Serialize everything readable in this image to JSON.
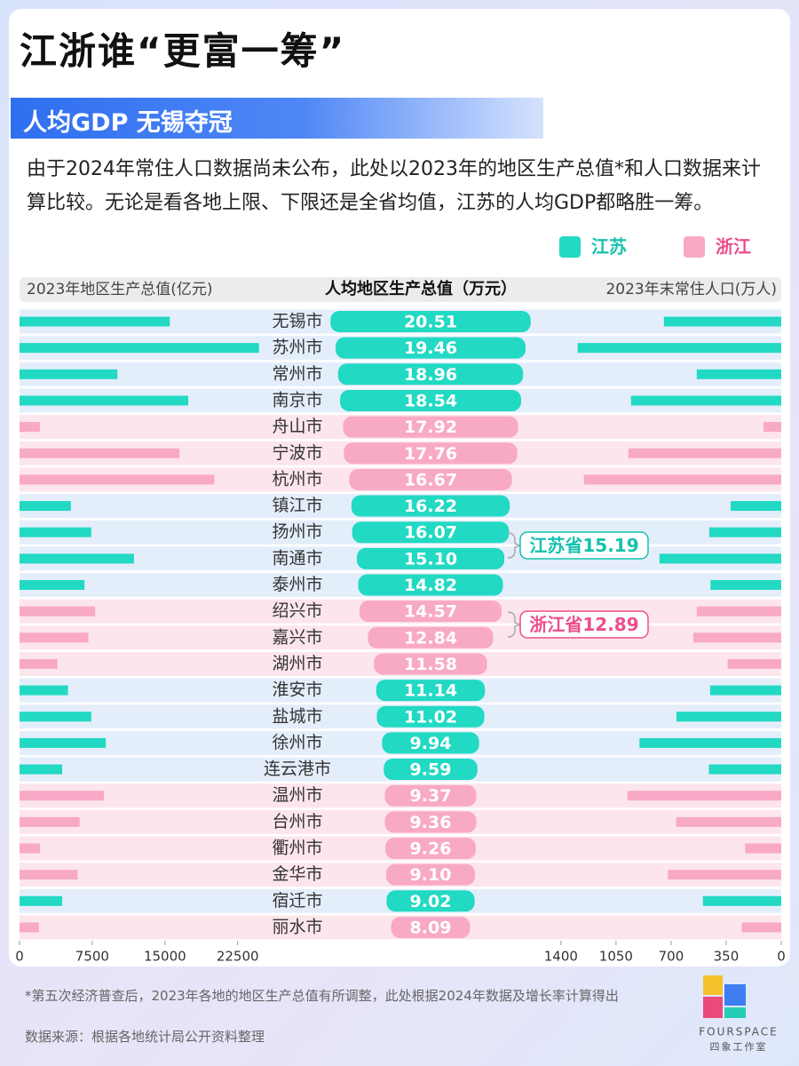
{
  "title": "江浙谁“更富一筹”",
  "subtitle": "人均GDP 无锡夺冠",
  "description": "由于2024年常住人口数据尚未公布，此处以2023年的地区生产总值*和人口数据来计算比较。无论是看各地上限、下限还是全省均值，江苏的人均GDP都略胜一筹。",
  "chart_data": {
    "type": "diverging-bar",
    "legend": [
      {
        "name": "江苏",
        "color": "#22d9c3",
        "row_color": "#e4eefb"
      },
      {
        "name": "浙江",
        "color": "#f8a9c6",
        "row_color": "#fde5ec"
      }
    ],
    "categories": [
      "无锡市",
      "苏州市",
      "常州市",
      "南京市",
      "舟山市",
      "宁波市",
      "杭州市",
      "镇江市",
      "扬州市",
      "南通市",
      "泰州市",
      "绍兴市",
      "嘉兴市",
      "湖州市",
      "淮安市",
      "盐城市",
      "徐州市",
      "连云港市",
      "温州市",
      "台州市",
      "衢州市",
      "金华市",
      "宿迁市",
      "丽水市"
    ],
    "groups": [
      "江苏",
      "江苏",
      "江苏",
      "江苏",
      "浙江",
      "浙江",
      "浙江",
      "江苏",
      "江苏",
      "江苏",
      "江苏",
      "浙江",
      "浙江",
      "浙江",
      "江苏",
      "江苏",
      "江苏",
      "江苏",
      "浙江",
      "浙江",
      "浙江",
      "浙江",
      "江苏",
      "浙江"
    ],
    "series": [
      {
        "name": "2023年地区生产总值(亿元)",
        "values": [
          15500,
          24700,
          10100,
          17400,
          2100,
          16500,
          20100,
          5300,
          7400,
          11800,
          6700,
          7800,
          7100,
          3900,
          5000,
          7400,
          8900,
          4400,
          8700,
          6200,
          2100,
          6000,
          4400,
          2000
        ],
        "xlim": [
          0,
          25000
        ],
        "xticks": [
          0,
          7500,
          15000,
          22500
        ]
      },
      {
        "name": "人均地区生产总值（万元）",
        "values": [
          20.51,
          19.46,
          18.96,
          18.54,
          17.92,
          17.76,
          16.67,
          16.22,
          16.07,
          15.1,
          14.82,
          14.57,
          12.84,
          11.58,
          11.14,
          11.02,
          9.94,
          9.59,
          9.37,
          9.36,
          9.26,
          9.1,
          9.02,
          8.09
        ],
        "value_labels": [
          "20.51",
          "19.46",
          "18.96",
          "18.54",
          "17.92",
          "17.76",
          "16.67",
          "16.22",
          "16.07",
          "15.10",
          "14.82",
          "14.57",
          "12.84",
          "11.58",
          "11.14",
          "11.02",
          "9.94",
          "9.59",
          "9.37",
          "9.36",
          "9.26",
          "9.10",
          "9.02",
          "8.09"
        ]
      },
      {
        "name": "2023年末常住人口(万人)",
        "values": [
          746,
          1294,
          537,
          955,
          113,
          972,
          1254,
          322,
          458,
          774,
          450,
          537,
          559,
          341,
          452,
          666,
          901,
          460,
          977,
          668,
          229,
          721,
          498,
          251
        ],
        "xlim": [
          0,
          1450
        ],
        "xticks": [
          1400,
          1050,
          700,
          350,
          0
        ],
        "reversed": true
      }
    ],
    "annotations": [
      {
        "name": "江苏省",
        "value": 15.19,
        "color": "#14c2ad"
      },
      {
        "name": "浙江省",
        "value": 12.89,
        "color": "#ee4d8c"
      }
    ]
  },
  "footnote": "*第五次经济普查后，2023年各地的地区生产总值有所调整，此处根据2024年数据及增长率计算得出",
  "source": "数据来源：根据各地统计局公开资料整理",
  "logo": {
    "name": "FOURSPACE",
    "subname": "四象工作室"
  }
}
